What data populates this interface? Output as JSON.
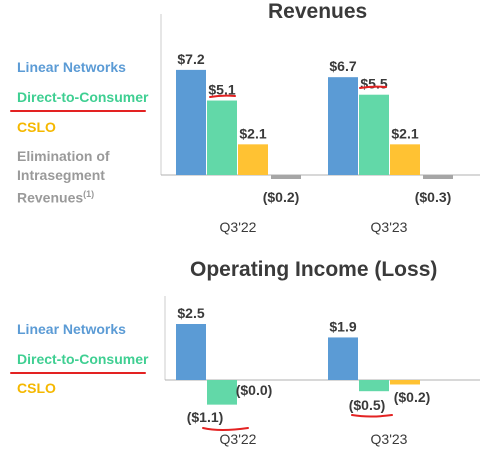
{
  "legend": {
    "linear": "Linear Networks",
    "dtc": "Direct-to-Consumer",
    "cslo": "CSLO",
    "elim_main": "Elimination of Intrasegment Revenues",
    "elim_sup": "(1)"
  },
  "colors": {
    "linear": "#5b9bd5",
    "dtc": "#62d8a8",
    "cslo": "#ffc233",
    "elim": "#a6a6a6",
    "annotation": "#e32222"
  },
  "chart_data": [
    {
      "type": "bar",
      "title": "Revenues",
      "categories": [
        "Q3'22",
        "Q3'23"
      ],
      "series": [
        {
          "name": "Linear Networks",
          "values": [
            7.2,
            6.7
          ],
          "labels": [
            "$7.2",
            "$6.7"
          ]
        },
        {
          "name": "Direct-to-Consumer",
          "values": [
            5.1,
            5.5
          ],
          "labels": [
            "$5.1",
            "$5.5"
          ]
        },
        {
          "name": "CSLO",
          "values": [
            2.1,
            2.1
          ],
          "labels": [
            "$2.1",
            "$2.1"
          ]
        },
        {
          "name": "Elimination of Intrasegment Revenues",
          "values": [
            -0.2,
            -0.3
          ],
          "labels": [
            "($0.2)",
            "($0.3)"
          ]
        }
      ]
    },
    {
      "type": "bar",
      "title": "Operating Income (Loss)",
      "categories": [
        "Q3'22",
        "Q3'23"
      ],
      "series": [
        {
          "name": "Linear Networks",
          "values": [
            2.5,
            1.9
          ],
          "labels": [
            "$2.5",
            "$1.9"
          ]
        },
        {
          "name": "Direct-to-Consumer",
          "values": [
            -1.1,
            -0.5
          ],
          "labels": [
            "($1.1)",
            "($0.5)"
          ]
        },
        {
          "name": "CSLO",
          "values": [
            0.0,
            -0.2
          ],
          "labels": [
            "($0.0)",
            "($0.2)"
          ]
        }
      ]
    }
  ]
}
